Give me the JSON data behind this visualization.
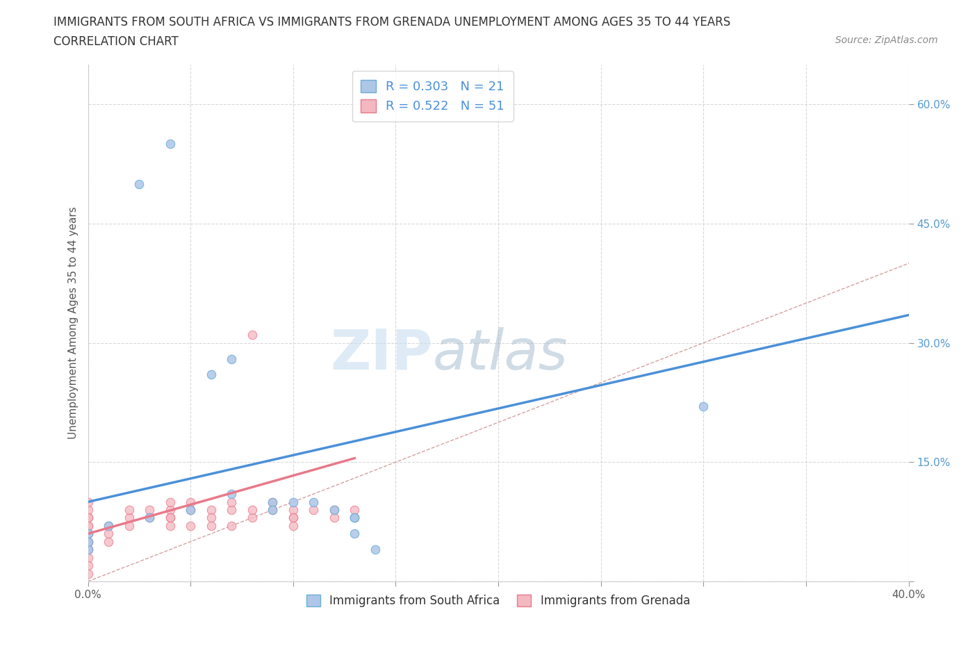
{
  "title_line1": "IMMIGRANTS FROM SOUTH AFRICA VS IMMIGRANTS FROM GRENADA UNEMPLOYMENT AMONG AGES 35 TO 44 YEARS",
  "title_line2": "CORRELATION CHART",
  "source_text": "Source: ZipAtlas.com",
  "ylabel": "Unemployment Among Ages 35 to 44 years",
  "xlim": [
    0.0,
    0.4
  ],
  "ylim": [
    0.0,
    0.65
  ],
  "xticks": [
    0.0,
    0.05,
    0.1,
    0.15,
    0.2,
    0.25,
    0.3,
    0.35,
    0.4
  ],
  "yticks": [
    0.0,
    0.15,
    0.3,
    0.45,
    0.6
  ],
  "legend_entries": [
    {
      "label": "R = 0.303   N = 21",
      "color": "#aec6e8"
    },
    {
      "label": "R = 0.522   N = 51",
      "color": "#f4b8c1"
    }
  ],
  "south_africa_scatter": {
    "color": "#aec6e8",
    "edgecolor": "#6aaed6",
    "x": [
      0.025,
      0.04,
      0.0,
      0.0,
      0.0,
      0.01,
      0.03,
      0.06,
      0.07,
      0.05,
      0.09,
      0.07,
      0.1,
      0.12,
      0.13,
      0.14,
      0.09,
      0.11,
      0.13,
      0.3,
      0.13
    ],
    "y": [
      0.5,
      0.55,
      0.04,
      0.05,
      0.06,
      0.07,
      0.08,
      0.26,
      0.28,
      0.09,
      0.1,
      0.11,
      0.1,
      0.09,
      0.06,
      0.04,
      0.09,
      0.1,
      0.08,
      0.22,
      0.08
    ]
  },
  "grenada_scatter": {
    "color": "#f4b8c1",
    "edgecolor": "#e8798a",
    "x": [
      0.0,
      0.0,
      0.0,
      0.0,
      0.0,
      0.0,
      0.0,
      0.0,
      0.0,
      0.0,
      0.0,
      0.0,
      0.0,
      0.0,
      0.0,
      0.01,
      0.01,
      0.01,
      0.02,
      0.02,
      0.02,
      0.03,
      0.03,
      0.04,
      0.04,
      0.04,
      0.05,
      0.05,
      0.06,
      0.06,
      0.07,
      0.07,
      0.08,
      0.08,
      0.08,
      0.09,
      0.09,
      0.1,
      0.1,
      0.1,
      0.1,
      0.11,
      0.12,
      0.12,
      0.13,
      0.13,
      0.05,
      0.06,
      0.04,
      0.04,
      0.07
    ],
    "y": [
      0.04,
      0.05,
      0.06,
      0.07,
      0.08,
      0.09,
      0.1,
      0.03,
      0.02,
      0.01,
      0.04,
      0.05,
      0.06,
      0.07,
      0.08,
      0.05,
      0.06,
      0.07,
      0.07,
      0.08,
      0.09,
      0.08,
      0.09,
      0.09,
      0.1,
      0.08,
      0.1,
      0.09,
      0.09,
      0.08,
      0.09,
      0.1,
      0.08,
      0.09,
      0.31,
      0.1,
      0.09,
      0.09,
      0.08,
      0.08,
      0.07,
      0.09,
      0.09,
      0.08,
      0.08,
      0.09,
      0.07,
      0.07,
      0.07,
      0.08,
      0.07
    ]
  },
  "south_africa_trend": {
    "color": "#4a90d9",
    "x_start": 0.0,
    "x_end": 0.4,
    "y_start": 0.1,
    "y_end": 0.335
  },
  "grenada_trend": {
    "color": "#e8798a",
    "x_start": 0.0,
    "x_end": 0.13,
    "y_start": 0.06,
    "y_end": 0.155
  },
  "diagonal_line": {
    "color": "#d4a0a0",
    "style": "--",
    "x": [
      0.0,
      0.65
    ],
    "y": [
      0.0,
      0.65
    ]
  },
  "watermark_zip": "ZIP",
  "watermark_atlas": "atlas",
  "background_color": "#ffffff",
  "grid_color": "#d8d8d8",
  "title_fontsize": 12,
  "axis_label_fontsize": 11,
  "tick_fontsize": 11,
  "scatter_size": 80
}
